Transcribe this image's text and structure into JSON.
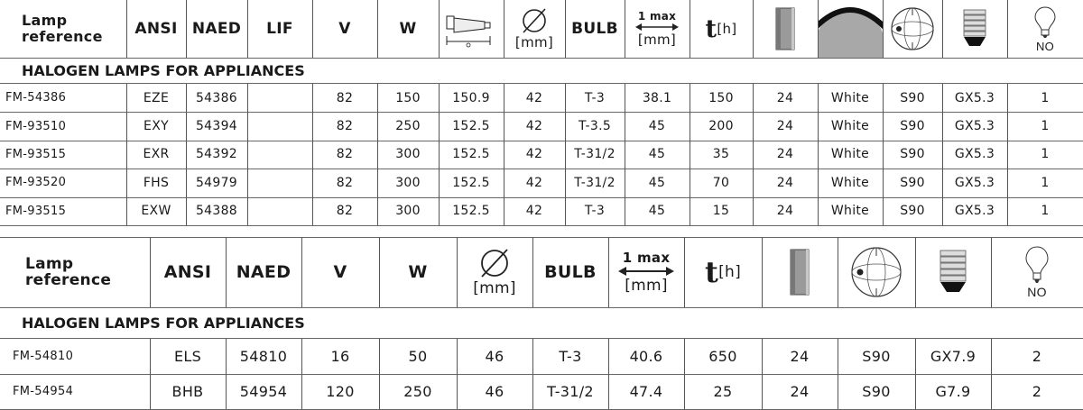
{
  "table1": {
    "header": {
      "lamp_reference": "Lamp reference",
      "ansi": "ANSI",
      "naed": "NAED",
      "lif": "LIF",
      "v": "V",
      "w": "W",
      "diameter_unit": "[mm]",
      "bulb": "BULB",
      "max_top": "1 max",
      "max_unit": "[mm]",
      "t": "t",
      "t_unit": "[h]",
      "no": "NO"
    },
    "section_title": "HALOGEN  LAMPS FOR APPLIANCES",
    "rows": [
      [
        "FM-54386",
        "EZE",
        "54386",
        "",
        "82",
        "150",
        "150.9",
        "42",
        "T-3",
        "38.1",
        "150",
        "24",
        "White",
        "S90",
        "GX5.3",
        "1"
      ],
      [
        "FM-93510",
        "EXY",
        "54394",
        "",
        "82",
        "250",
        "152.5",
        "42",
        "T-3.5",
        "45",
        "200",
        "24",
        "White",
        "S90",
        "GX5.3",
        "1"
      ],
      [
        "FM-93515",
        "EXR",
        "54392",
        "",
        "82",
        "300",
        "152.5",
        "42",
        "T-31/2",
        "45",
        "35",
        "24",
        "White",
        "S90",
        "GX5.3",
        "1"
      ],
      [
        "FM-93520",
        "FHS",
        "54979",
        "",
        "82",
        "300",
        "152.5",
        "42",
        "T-31/2",
        "45",
        "70",
        "24",
        "White",
        "S90",
        "GX5.3",
        "1"
      ],
      [
        "FM-93515",
        "EXW",
        "54388",
        "",
        "82",
        "300",
        "152.5",
        "42",
        "T-3",
        "45",
        "15",
        "24",
        "White",
        "S90",
        "GX5.3",
        "1"
      ]
    ]
  },
  "table2": {
    "header": {
      "lamp_reference": "Lamp reference",
      "ansi": "ANSI",
      "naed": "NAED",
      "v": "V",
      "w": "W",
      "diameter_unit": "[mm]",
      "bulb": "BULB",
      "max_top": "1 max",
      "max_unit": "[mm]",
      "t": "t",
      "t_unit": "[h]",
      "no": "NO"
    },
    "section_title": "HALOGEN  LAMPS FOR APPLIANCES",
    "rows": [
      [
        "FM-54810",
        "ELS",
        "54810",
        "16",
        "50",
        "46",
        "T-3",
        "40.6",
        "650",
        "24",
        "S90",
        "GX7.9",
        "2"
      ],
      [
        "FM-54954",
        "BHB",
        "54954",
        "120",
        "250",
        "46",
        "T-31/2",
        "47.4",
        "25",
        "24",
        "S90",
        "G7.9",
        "2"
      ]
    ]
  }
}
